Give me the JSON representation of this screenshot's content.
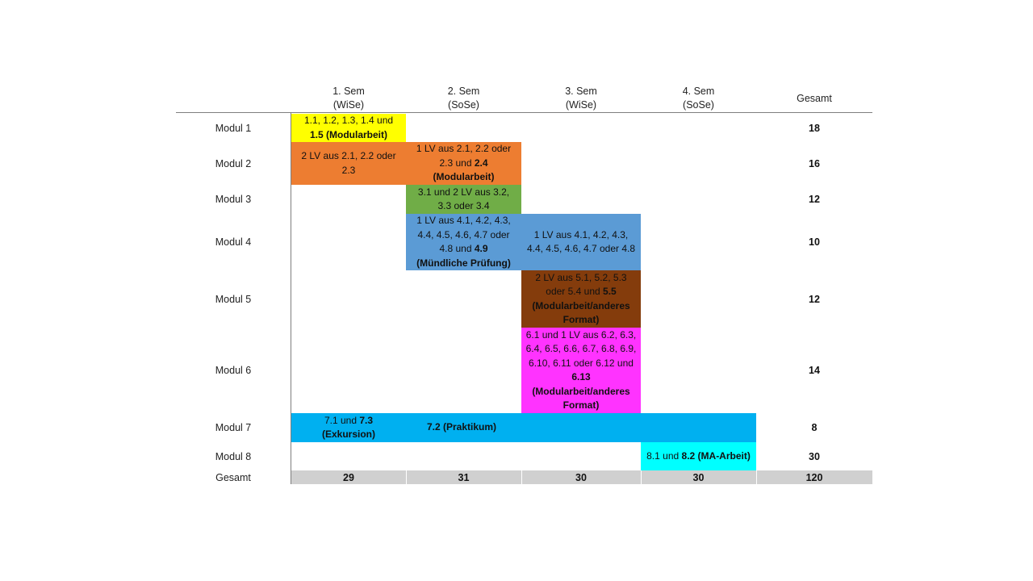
{
  "header": {
    "columns": [
      {
        "line1": "1. Sem",
        "line2": "(WiSe)"
      },
      {
        "line1": "2. Sem",
        "line2": "(SoSe)"
      },
      {
        "line1": "3. Sem",
        "line2": "(WiSe)"
      },
      {
        "line1": "4. Sem",
        "line2": "(SoSe)"
      }
    ],
    "total": "Gesamt"
  },
  "modules": [
    {
      "label": "Modul 1",
      "total": "18"
    },
    {
      "label": "Modul 2",
      "total": "16"
    },
    {
      "label": "Modul 3",
      "total": "12"
    },
    {
      "label": "Modul 4",
      "total": "10"
    },
    {
      "label": "Modul 5",
      "total": "12"
    },
    {
      "label": "Modul 6",
      "total": "14"
    },
    {
      "label": "Modul 7",
      "total": "8"
    },
    {
      "label": "Modul 8",
      "total": "30"
    }
  ],
  "cells": {
    "m1s1": {
      "plain": "1.1, 1.2, 1.3, 1.4 und",
      "bold": "1.5 (Modularbeit)"
    },
    "m2s1": {
      "plain": "2 LV aus 2.1, 2.2 oder 2.3"
    },
    "m2s2": {
      "plain": "1 LV aus 2.1, 2.2 oder 2.3 und",
      "bold": "2.4",
      "bold2": "(Modularbeit)"
    },
    "m3s2": {
      "plain": "3.1 und 2 LV aus 3.2, 3.3 oder 3.4"
    },
    "m4s2": {
      "plain": "1 LV aus 4.1, 4.2, 4.3, 4.4, 4.5, 4.6, 4.7 oder 4.8 und",
      "bold": "4.9",
      "bold2": "(Mündliche Prüfung)"
    },
    "m4s3": {
      "plain": "1 LV aus 4.1, 4.2, 4.3, 4.4, 4.5, 4.6, 4.7 oder 4.8"
    },
    "m5s3": {
      "plain": "2 LV aus 5.1, 5.2, 5.3 oder 5.4 und",
      "bold": "5.5",
      "bold2": "(Modularbeit/anderes Format)"
    },
    "m6s3": {
      "plain": "6.1 und 1 LV aus 6.2, 6.3, 6.4, 6.5, 6.6, 6.7, 6.8, 6.9, 6.10, 6.11 oder 6.12 und",
      "bold": "6.13",
      "bold2": "(Modularbeit/anderes Format)"
    },
    "m7s1": {
      "plain": "7.1 und",
      "bold": "7.3",
      "bold2": "(Exkursion)"
    },
    "m7s2": {
      "bold": "7.2 (Praktikum)"
    },
    "m8s4": {
      "plain": "8.1 und",
      "bold": "8.2 (MA-Arbeit)"
    }
  },
  "footer": {
    "label": "Gesamt",
    "values": [
      "29",
      "31",
      "30",
      "30"
    ],
    "total": "120"
  },
  "colors": {
    "yellow": "#ffff00",
    "orange": "#ed7d31",
    "green": "#70ad47",
    "blue": "#5b9bd5",
    "brown": "#843c0c",
    "magenta": "#ff33ff",
    "sky": "#00b0f0",
    "cyan": "#00ffff",
    "total_bar": "#d0d0d0"
  }
}
